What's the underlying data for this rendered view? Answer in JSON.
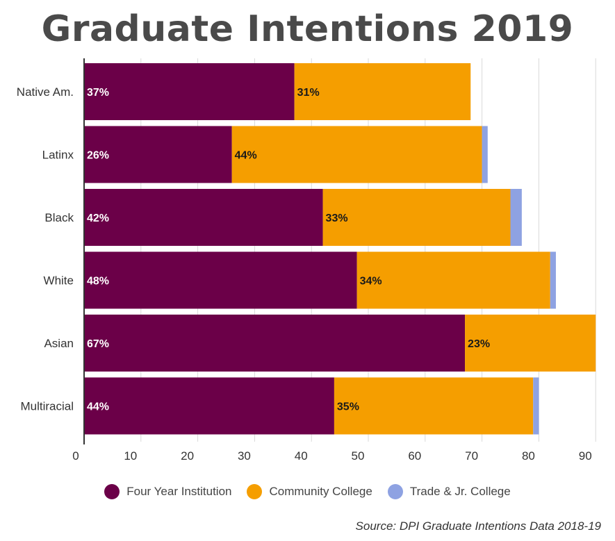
{
  "chart_data": {
    "type": "bar",
    "orientation": "horizontal",
    "stacked": true,
    "title": "Graduate Intentions 2019",
    "categories": [
      "Native Am.",
      "Latinx",
      "Black",
      "White",
      "Asian",
      "Multiracial"
    ],
    "series": [
      {
        "name": "Four Year Institution",
        "color": "#6b0048",
        "values": [
          37,
          26,
          42,
          48,
          67,
          44
        ],
        "labels": [
          "37%",
          "26%",
          "42%",
          "48%",
          "67%",
          "44%"
        ]
      },
      {
        "name": "Community College",
        "color": "#f59e00",
        "values": [
          31,
          44,
          33,
          34,
          23,
          35
        ],
        "labels": [
          "31%",
          "44%",
          "33%",
          "34%",
          "23%",
          "35%"
        ]
      },
      {
        "name": "Trade & Jr. College",
        "color": "#8ea2e2",
        "values": [
          0,
          1,
          2,
          1,
          0,
          1
        ],
        "labels": [
          "",
          "",
          "",
          "",
          "",
          ""
        ]
      }
    ],
    "xlim": [
      0,
      90
    ],
    "xticks": [
      0,
      10,
      20,
      30,
      40,
      50,
      60,
      70,
      80,
      90
    ],
    "grid": true,
    "legend_position": "bottom"
  },
  "source": "Source: DPI Graduate Intentions Data 2018-19"
}
